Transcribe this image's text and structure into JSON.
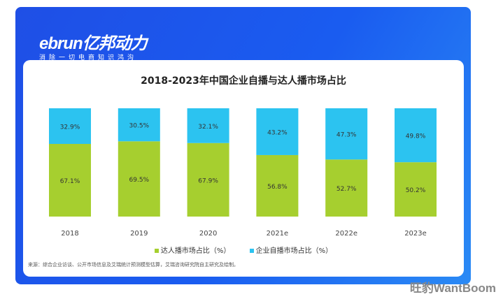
{
  "logo": {
    "brand": "ebrun亿邦动力",
    "tagline": "消除一切电商知识鸿沟"
  },
  "watermark": "旺豹WantBoom",
  "source": "来源：综合企业访谈、公开市场信息及艾瑞统计预测模型估算，艾瑞咨询研究院自主研究及绘制。",
  "chart_data": {
    "type": "bar",
    "stacked": true,
    "title": "2018-2023年中国企业自播与达人播市场占比",
    "categories": [
      "2018",
      "2019",
      "2020",
      "2021e",
      "2022e",
      "2023e"
    ],
    "series": [
      {
        "name": "达人播市场占比（%）",
        "color": "#a6cf2f",
        "values": [
          67.1,
          69.5,
          67.9,
          56.8,
          52.7,
          50.2
        ]
      },
      {
        "name": "企业自播市场占比（%）",
        "color": "#2cc3f0",
        "values": [
          32.9,
          30.5,
          32.1,
          43.2,
          47.3,
          49.8
        ]
      }
    ],
    "ylim": [
      0,
      100
    ],
    "legend": "bottom",
    "grid": false
  }
}
